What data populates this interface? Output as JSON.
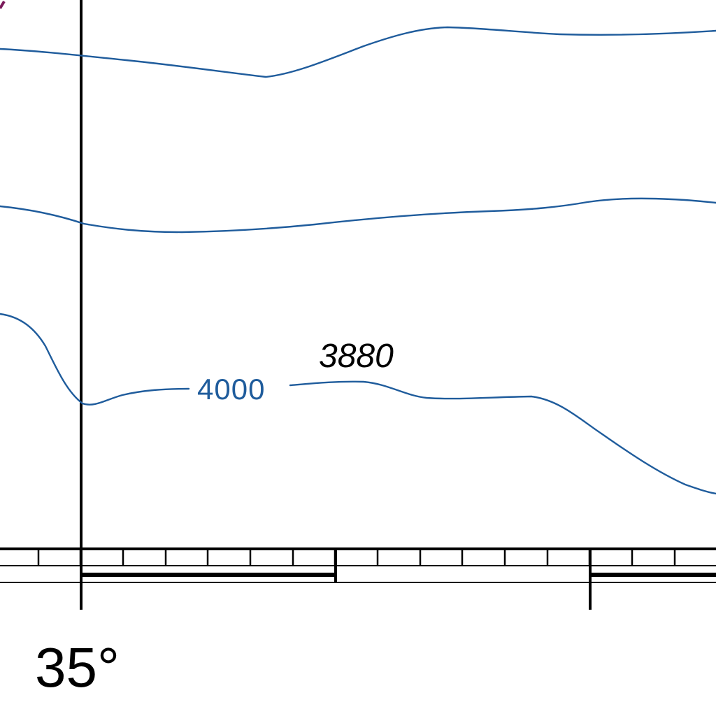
{
  "colors": {
    "contour": "#1f5c9c",
    "frame": "#000000",
    "coastline": "#7a1a5a"
  },
  "contours": [
    {
      "name": "upper-contour"
    },
    {
      "name": "middle-contour"
    },
    {
      "name": "lower-contour",
      "label": "4000"
    }
  ],
  "soundings": [
    {
      "value": "3880"
    }
  ],
  "border": {
    "longitude_label": "35°"
  }
}
